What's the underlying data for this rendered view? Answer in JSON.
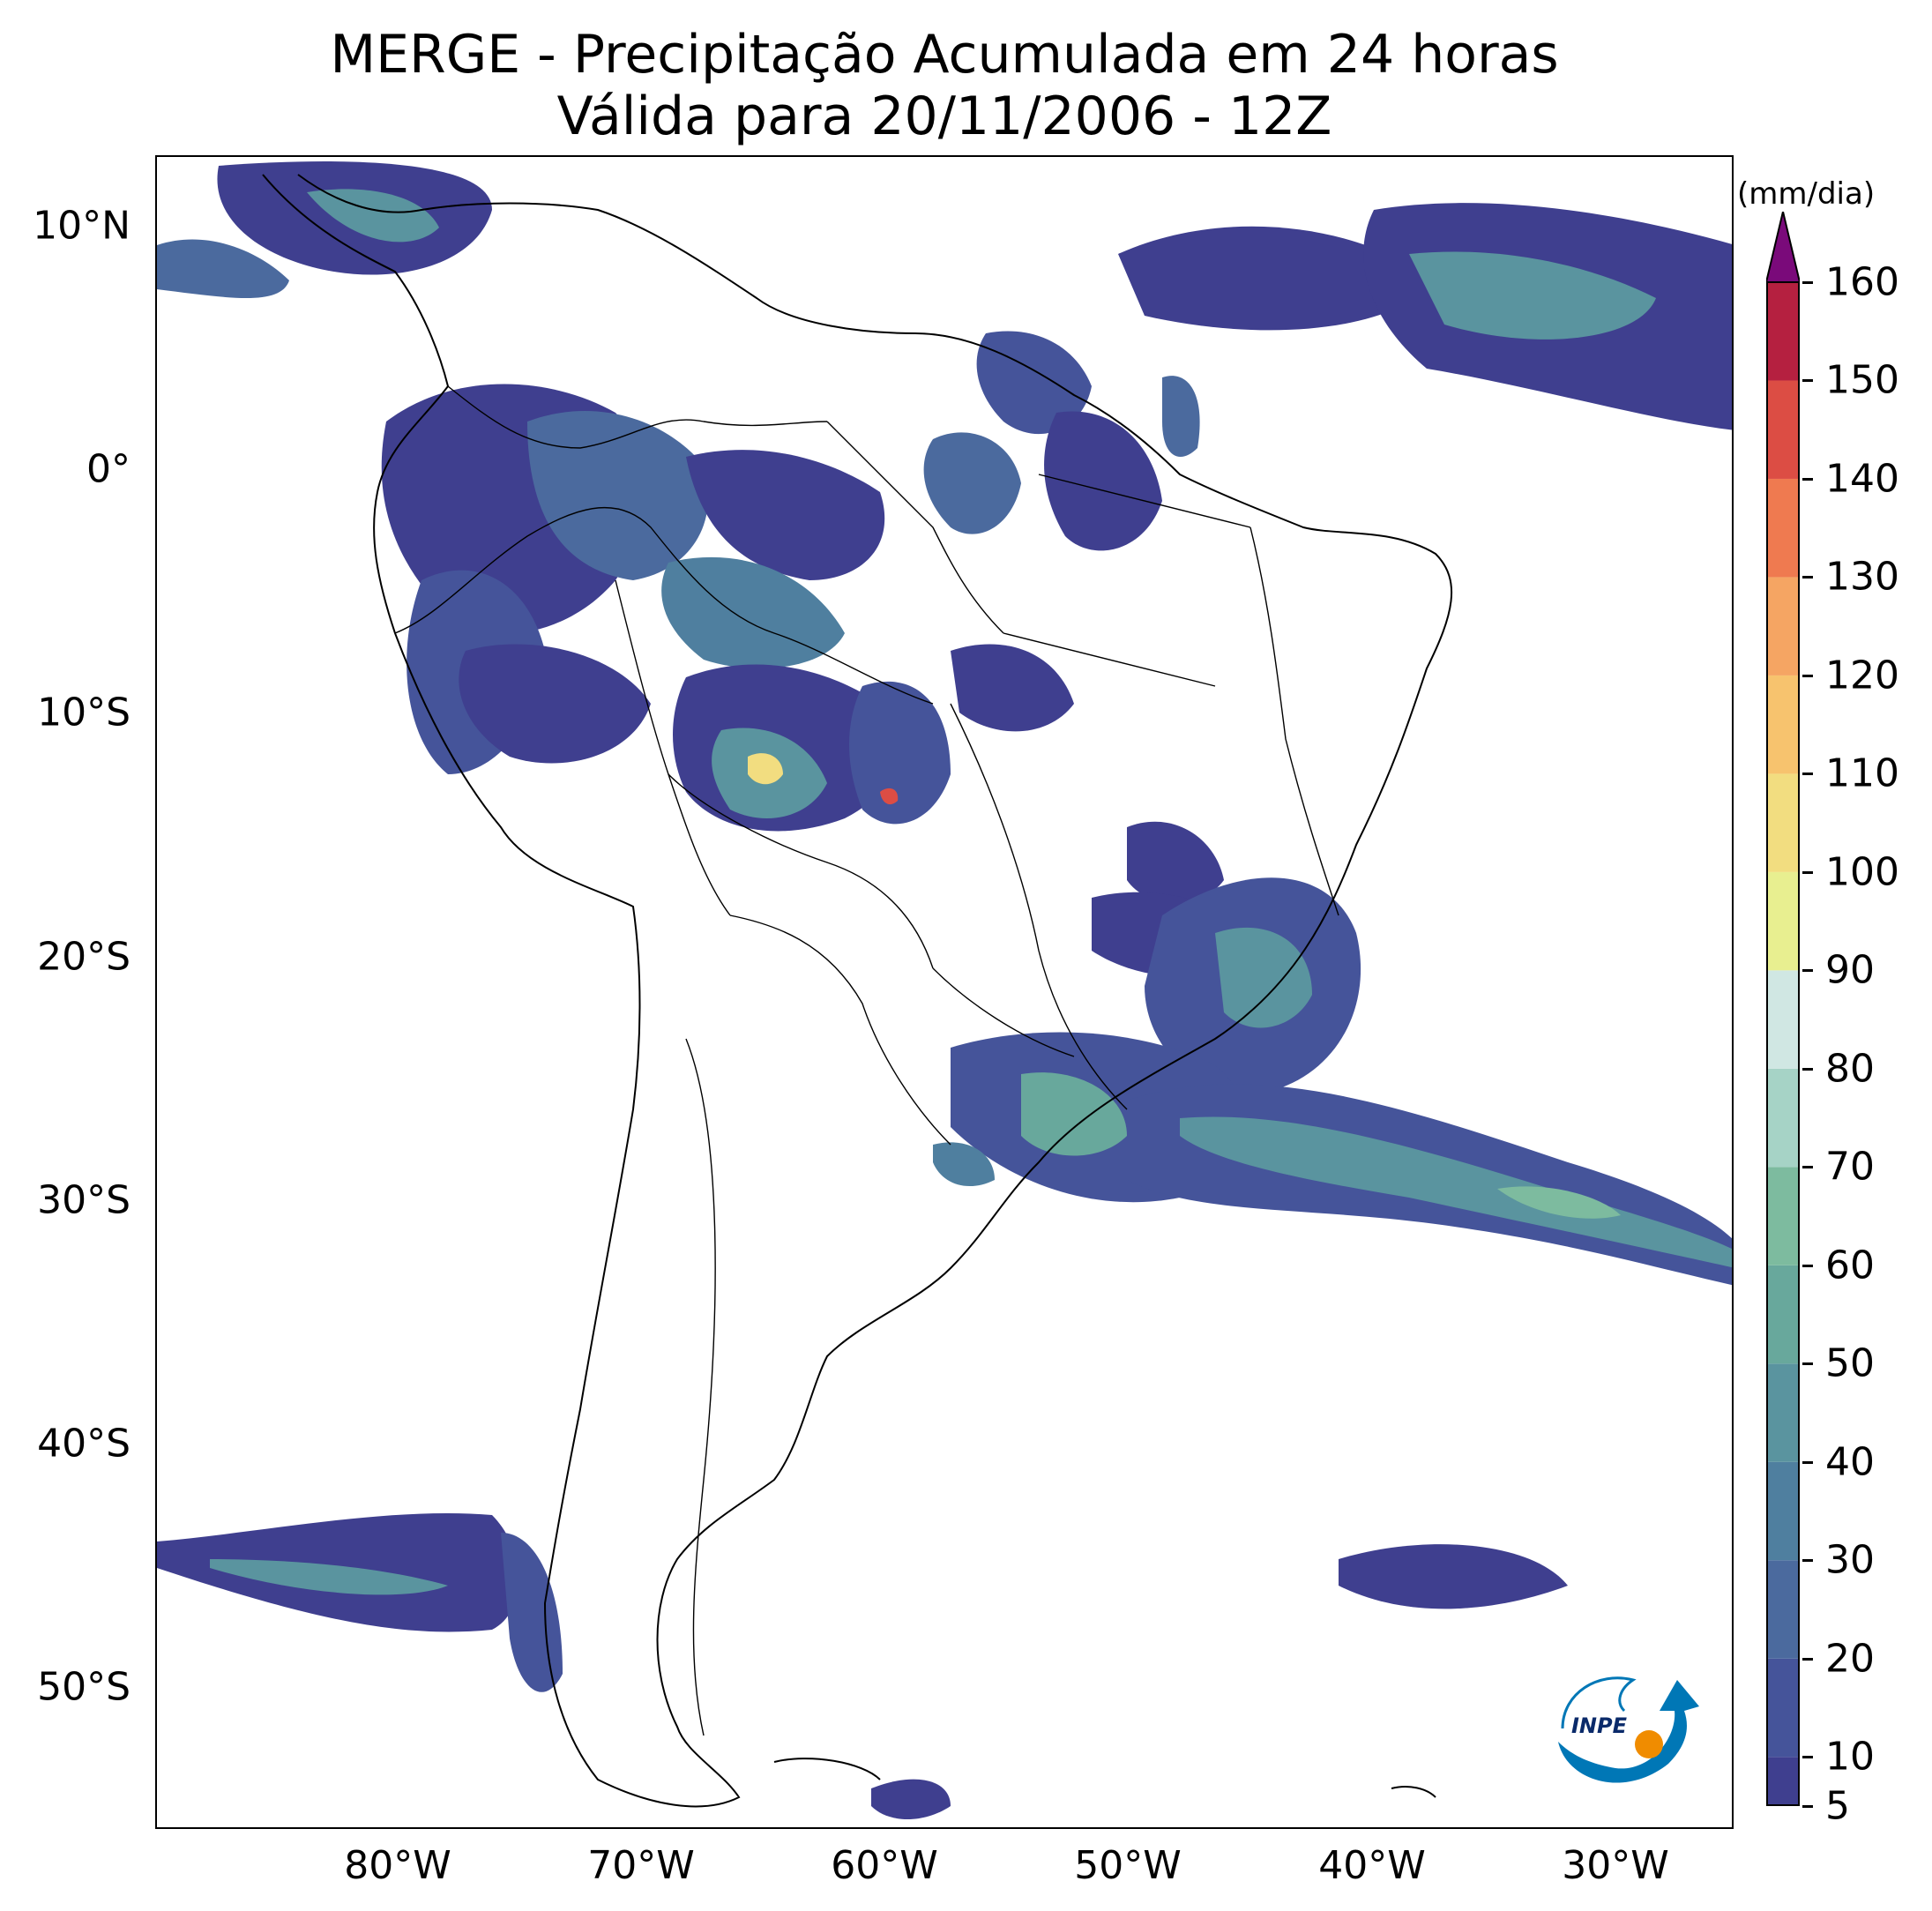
{
  "title": {
    "line1": "MERGE - Precipitação Acumulada em 24 horas",
    "line2": "Válida para 20/11/2006 - 12Z"
  },
  "map": {
    "lon_range": [
      -90,
      -25
    ],
    "lat_range": [
      -56,
      13
    ],
    "lat_ticks": [
      {
        "value": 10,
        "label": "10°N"
      },
      {
        "value": 0,
        "label": "0°"
      },
      {
        "value": -10,
        "label": "10°S"
      },
      {
        "value": -20,
        "label": "20°S"
      },
      {
        "value": -30,
        "label": "30°S"
      },
      {
        "value": -40,
        "label": "40°S"
      },
      {
        "value": -50,
        "label": "50°S"
      }
    ],
    "lon_ticks": [
      {
        "value": -80,
        "label": "80°W"
      },
      {
        "value": -70,
        "label": "70°W"
      },
      {
        "value": -60,
        "label": "60°W"
      },
      {
        "value": -50,
        "label": "50°W"
      },
      {
        "value": -40,
        "label": "40°W"
      },
      {
        "value": -30,
        "label": "30°W"
      }
    ]
  },
  "colorbar": {
    "unit": "(mm/dia)",
    "min": 5,
    "max": 160,
    "labels": [
      "5",
      "10",
      "20",
      "30",
      "40",
      "50",
      "60",
      "70",
      "80",
      "90",
      "100",
      "110",
      "120",
      "130",
      "140",
      "150",
      "160"
    ],
    "label_values": [
      5,
      10,
      20,
      30,
      40,
      50,
      60,
      70,
      80,
      90,
      100,
      110,
      120,
      130,
      140,
      150,
      160
    ],
    "colors": [
      "#3f3f8f",
      "#45549a",
      "#4b6a9e",
      "#4f7f9f",
      "#5a949f",
      "#68a89c",
      "#7dbb9f",
      "#a6d3c6",
      "#d0e7e3",
      "#e8ef90",
      "#f2dd80",
      "#f7c36e",
      "#f5a563",
      "#ef7a50",
      "#dc4d44",
      "#b52040",
      "#7a0a7a"
    ]
  },
  "logo": {
    "text": "INPE"
  }
}
